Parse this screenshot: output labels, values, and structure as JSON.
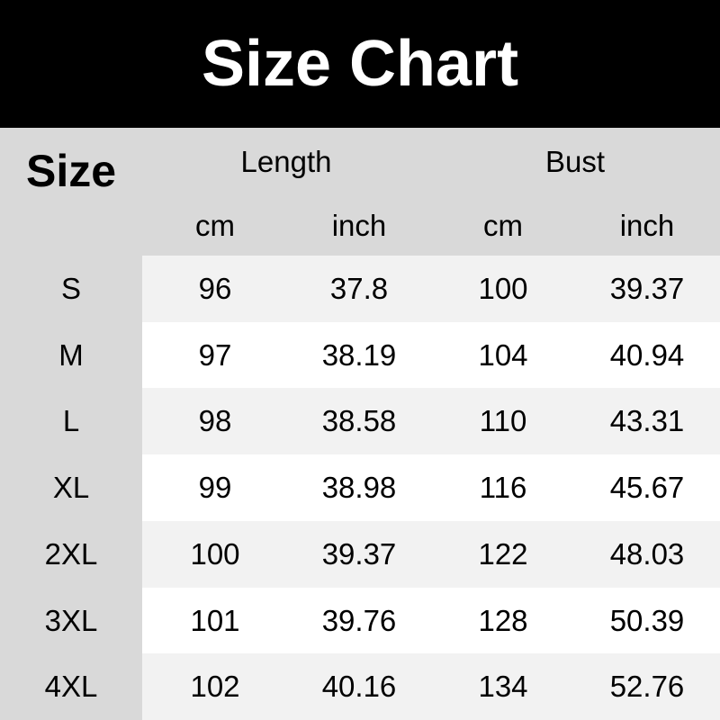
{
  "title": "Size Chart",
  "header": {
    "size_label": "Size",
    "groups": [
      "Length",
      "Bust"
    ],
    "units": [
      "cm",
      "inch",
      "cm",
      "inch"
    ]
  },
  "colors": {
    "title_bg": "#000000",
    "header_bg": "#d9d9d9",
    "row_alt": "#f2f2f2",
    "row": "#ffffff"
  },
  "rows": [
    [
      "S",
      "96",
      "37.8",
      "100",
      "39.37"
    ],
    [
      "M",
      "97",
      "38.19",
      "104",
      "40.94"
    ],
    [
      "L",
      "98",
      "38.58",
      "110",
      "43.31"
    ],
    [
      "XL",
      "99",
      "38.98",
      "116",
      "45.67"
    ],
    [
      "2XL",
      "100",
      "39.37",
      "122",
      "48.03"
    ],
    [
      "3XL",
      "101",
      "39.76",
      "128",
      "50.39"
    ],
    [
      "4XL",
      "102",
      "40.16",
      "134",
      "52.76"
    ]
  ]
}
